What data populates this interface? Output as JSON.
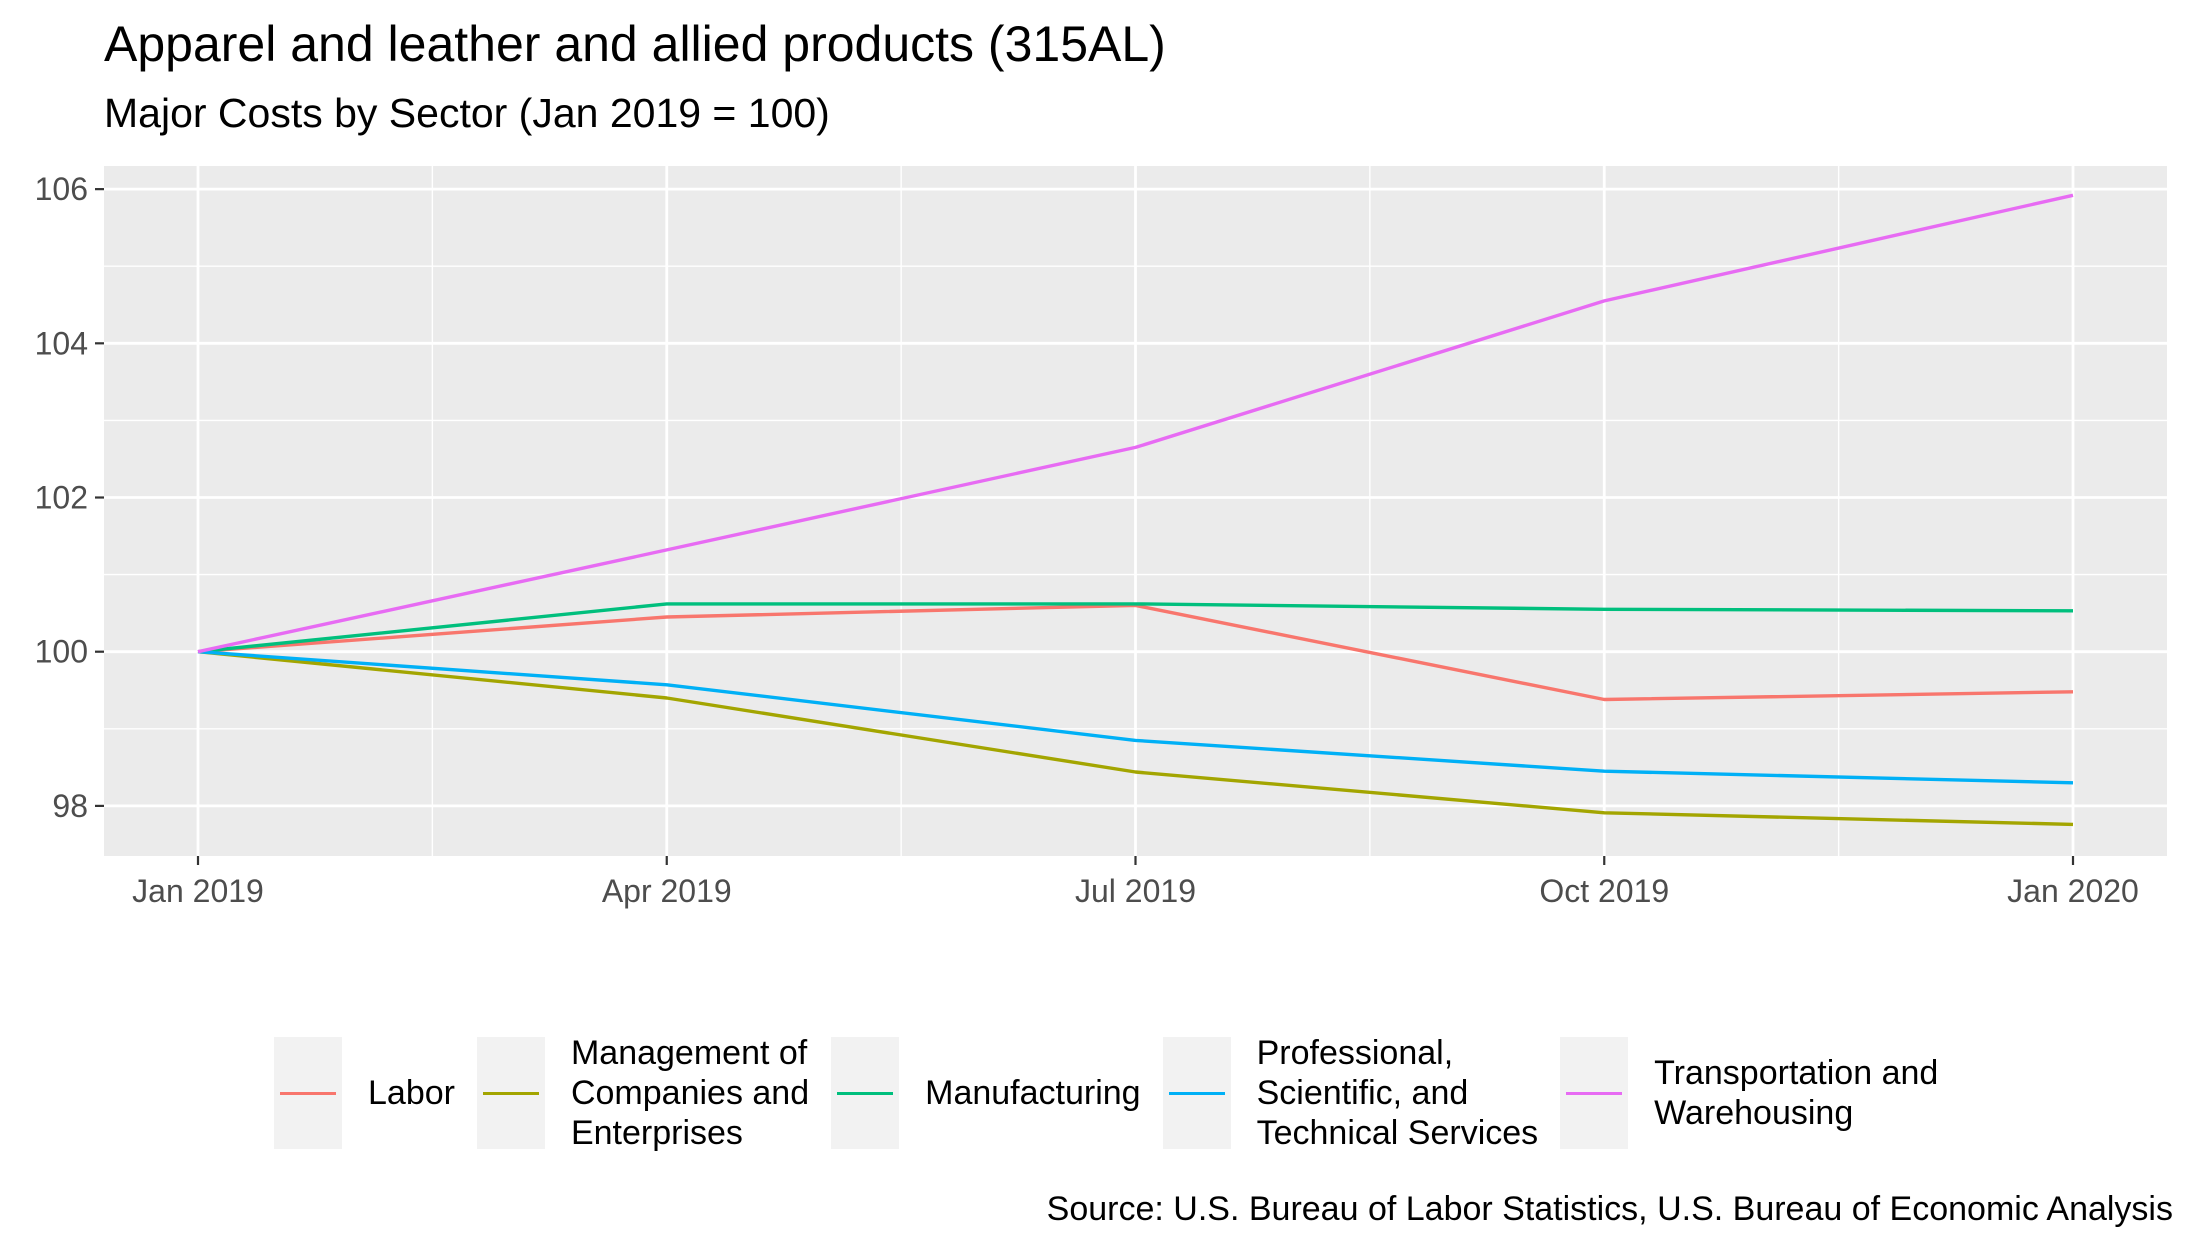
{
  "title": "Apparel and leather and allied products (315AL)",
  "subtitle": "Major Costs by Sector (Jan 2019 = 100)",
  "caption": "Source: U.S. Bureau of Labor Statistics, U.S. Bureau of Economic Analysis",
  "legend_items": [
    "Labor",
    "Management of\nCompanies and\nEnterprises",
    "Manufacturing",
    "Professional,\nScientific, and\nTechnical Services",
    "Transportation and\nWarehousing"
  ],
  "chart_data": {
    "type": "line",
    "x": [
      "Jan 2019",
      "Apr 2019",
      "Jul 2019",
      "Oct 2019",
      "Jan 2020"
    ],
    "x_ticks": [
      "Jan 2019",
      "Apr 2019",
      "Jul 2019",
      "Oct 2019",
      "Jan 2020"
    ],
    "y_ticks": [
      98,
      100,
      102,
      104,
      106
    ],
    "ylim": [
      97.35,
      106.3
    ],
    "grid": true,
    "legend_position": "bottom",
    "series": [
      {
        "name": "Labor",
        "color": "#F8766D",
        "values": [
          100,
          100.45,
          100.6,
          99.38,
          99.48
        ]
      },
      {
        "name": "Management of Companies and Enterprises",
        "color": "#A3A500",
        "values": [
          100,
          99.4,
          98.44,
          97.91,
          97.76
        ]
      },
      {
        "name": "Manufacturing",
        "color": "#00BF7D",
        "values": [
          100,
          100.62,
          100.62,
          100.55,
          100.53
        ]
      },
      {
        "name": "Professional, Scientific, and Technical Services",
        "color": "#00B0F6",
        "values": [
          100,
          99.57,
          98.85,
          98.45,
          98.3
        ]
      },
      {
        "name": "Transportation and Warehousing",
        "color": "#E76BF3",
        "values": [
          100,
          101.32,
          102.65,
          104.55,
          105.92
        ]
      }
    ]
  }
}
